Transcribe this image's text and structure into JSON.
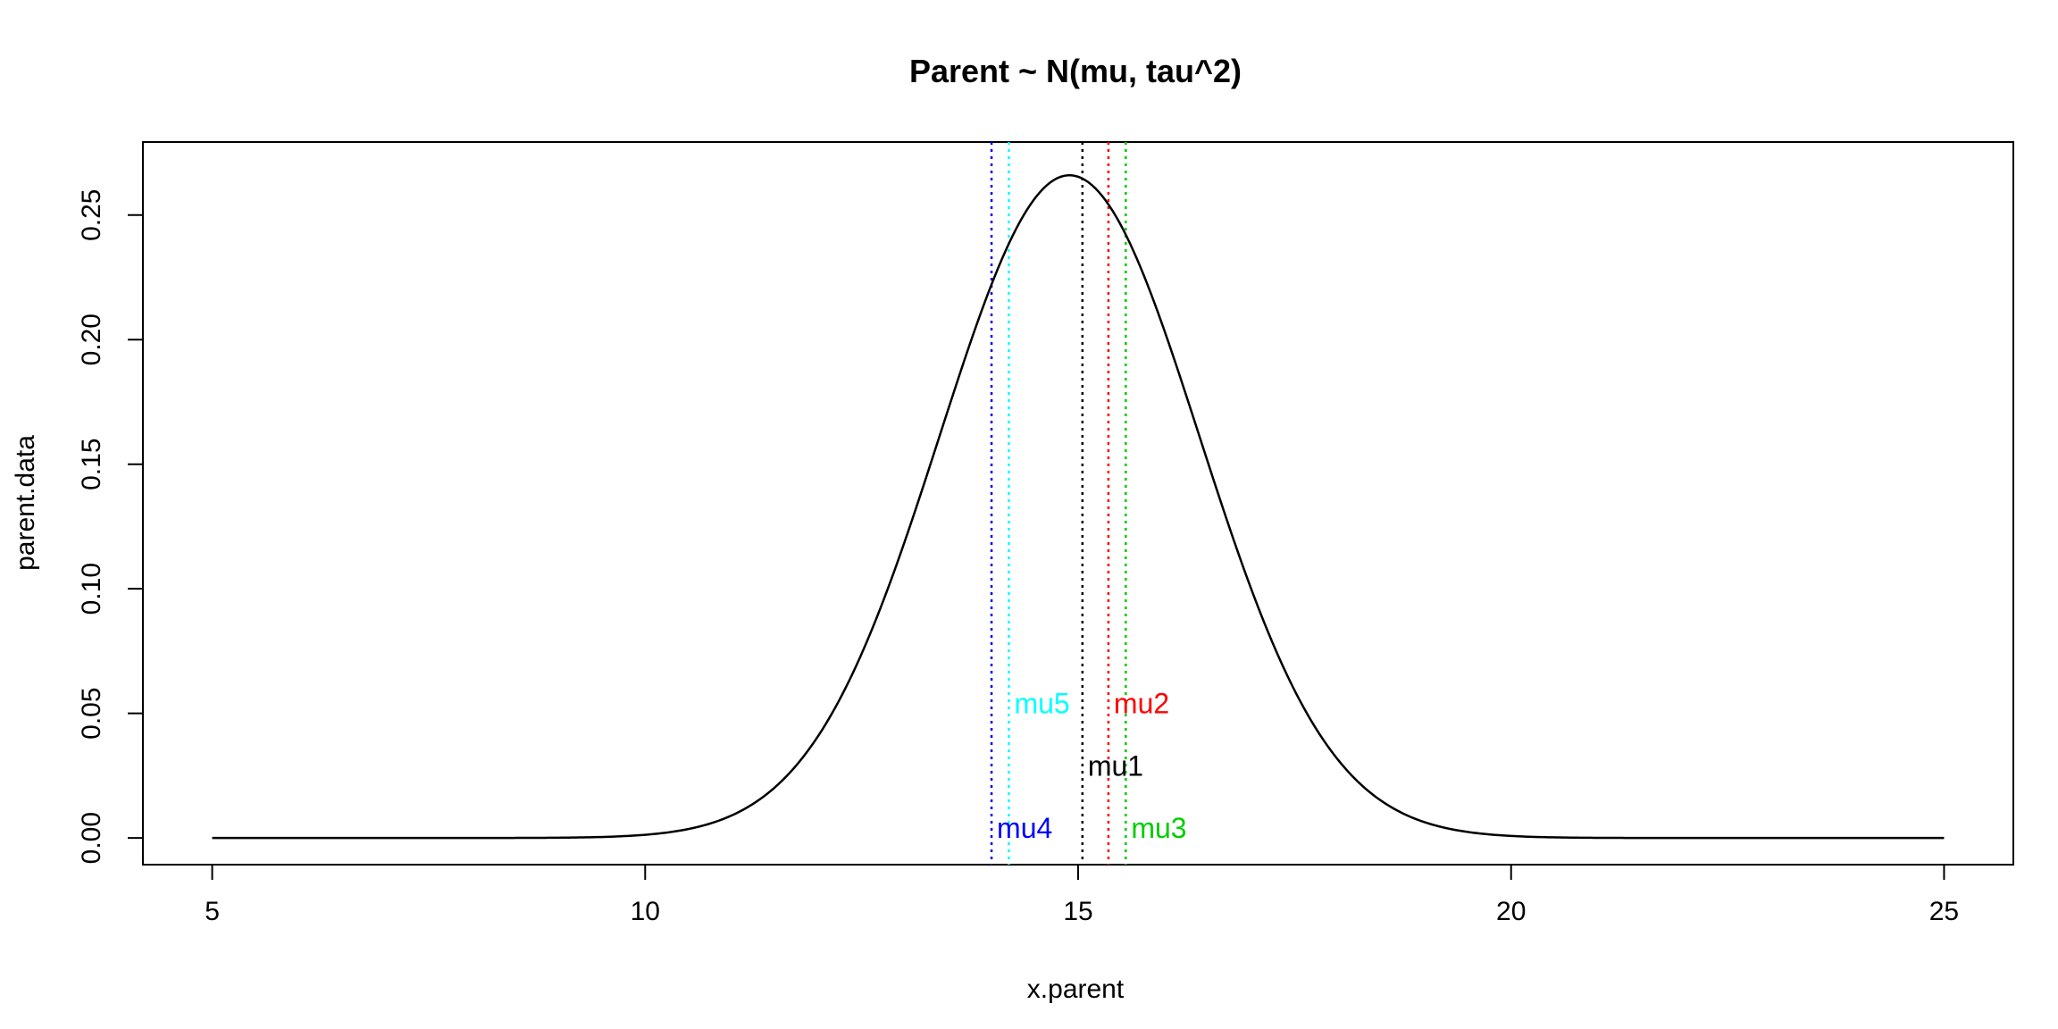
{
  "chart_data": {
    "type": "line",
    "title": "Parent ~ N(mu, tau^2)",
    "xlabel": "x.parent",
    "ylabel": "parent.data",
    "xlim": [
      4.2,
      25.8
    ],
    "ylim": [
      -0.0107,
      0.2793
    ],
    "x_ticks": [
      5,
      10,
      15,
      20,
      25
    ],
    "y_ticks": [
      0.0,
      0.05,
      0.1,
      0.15,
      0.2,
      0.25
    ],
    "y_tick_labels": [
      "0.00",
      "0.05",
      "0.10",
      "0.15",
      "0.20",
      "0.25"
    ],
    "grid": false,
    "legend": "none",
    "curve": {
      "distribution": "normal",
      "mean": 14.9,
      "sd": 1.5,
      "x_range": [
        5,
        25
      ],
      "color": "#000000"
    },
    "markers": [
      {
        "label": "mu1",
        "x": 15.05,
        "label_y": 0.029,
        "color": "#000000"
      },
      {
        "label": "mu2",
        "x": 15.35,
        "label_y": 0.054,
        "color": "#ff0000"
      },
      {
        "label": "mu3",
        "x": 15.55,
        "label_y": 0.004,
        "color": "#00cd00"
      },
      {
        "label": "mu4",
        "x": 14.0,
        "label_y": 0.004,
        "color": "#0000ff"
      },
      {
        "label": "mu5",
        "x": 14.2,
        "label_y": 0.054,
        "color": "#00ffff"
      }
    ]
  }
}
